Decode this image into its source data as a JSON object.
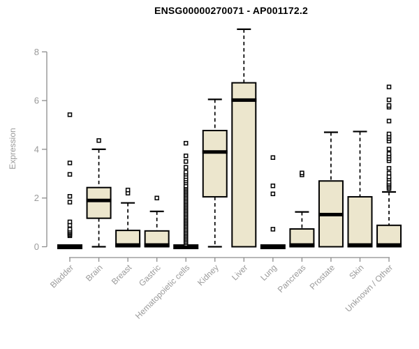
{
  "colors": {
    "box_fill": "#ece6cd",
    "box_border": "#000000",
    "median": "#000000",
    "whisker": "#000000",
    "outlier_stroke": "#000000",
    "outlier_fill": "#ffffff",
    "axis": "#8c8c8c",
    "tick_label": "#9a9a9a",
    "title": "#000000",
    "background": "#ffffff"
  },
  "chart_data": {
    "type": "boxplot",
    "title": "ENSG00000270071 - AP001172.2",
    "xlabel": "",
    "ylabel": "Expression",
    "ylim": [
      0,
      9.2
    ],
    "yticks": [
      0,
      2,
      4,
      6,
      8
    ],
    "grid": false,
    "legend": "none",
    "categories": [
      "Bladder",
      "Brain",
      "Breast",
      "Gastric",
      "Hematopoietic cells",
      "Kidney",
      "Liver",
      "Lung",
      "Pancreas",
      "Prostate",
      "Skin",
      "Unknown / Other"
    ],
    "series": [
      {
        "name": "Bladder",
        "q1": 0,
        "median": 0,
        "q3": 0,
        "whisker_low": 0,
        "whisker_high": 0,
        "outliers": [
          0.45,
          0.5,
          0.55,
          0.6,
          0.65,
          0.72,
          0.88,
          1.02,
          1.83,
          2.07,
          2.97,
          3.44,
          5.42
        ]
      },
      {
        "name": "Brain",
        "q1": 1.17,
        "median": 1.9,
        "q3": 2.43,
        "whisker_low": 0,
        "whisker_high": 4.0,
        "outliers": [
          4.36
        ]
      },
      {
        "name": "Breast",
        "q1": 0,
        "median": 0,
        "q3": 0.67,
        "whisker_low": 0,
        "whisker_high": 1.8,
        "outliers": [
          2.2,
          2.33
        ]
      },
      {
        "name": "Gastric",
        "q1": 0,
        "median": 0,
        "q3": 0.65,
        "whisker_low": 0,
        "whisker_high": 1.45,
        "outliers": [
          2.0
        ]
      },
      {
        "name": "Hematopoietic cells",
        "q1": 0,
        "median": 0,
        "q3": 0,
        "whisker_low": 0,
        "whisker_high": 0,
        "outliers": [
          0.1,
          0.16,
          0.22,
          0.28,
          0.34,
          0.4,
          0.46,
          0.52,
          0.58,
          0.64,
          0.7,
          0.76,
          0.82,
          0.88,
          0.94,
          1.0,
          1.06,
          1.12,
          1.18,
          1.24,
          1.3,
          1.36,
          1.42,
          1.48,
          1.54,
          1.6,
          1.66,
          1.72,
          1.78,
          1.84,
          1.9,
          1.96,
          2.02,
          2.08,
          2.14,
          2.2,
          2.26,
          2.32,
          2.38,
          2.44,
          2.5,
          2.62,
          2.7,
          2.78,
          2.88,
          2.98,
          3.06,
          3.26,
          3.5,
          3.73,
          4.25
        ]
      },
      {
        "name": "Kidney",
        "q1": 2.05,
        "median": 3.89,
        "q3": 4.77,
        "whisker_low": 0,
        "whisker_high": 6.05,
        "outliers": []
      },
      {
        "name": "Liver",
        "q1": 0,
        "median": 6.02,
        "q3": 6.73,
        "whisker_low": 0,
        "whisker_high": 8.93,
        "outliers": []
      },
      {
        "name": "Lung",
        "q1": 0,
        "median": 0,
        "q3": 0,
        "whisker_low": 0,
        "whisker_high": 0,
        "outliers": [
          0.72,
          2.17,
          2.5,
          3.66
        ]
      },
      {
        "name": "Pancreas",
        "q1": 0,
        "median": 0,
        "q3": 0.73,
        "whisker_low": 0,
        "whisker_high": 1.43,
        "outliers": [
          2.95,
          3.03
        ]
      },
      {
        "name": "Prostate",
        "q1": 0,
        "median": 1.32,
        "q3": 2.7,
        "whisker_low": 0,
        "whisker_high": 4.7,
        "outliers": []
      },
      {
        "name": "Skin",
        "q1": 0,
        "median": 0,
        "q3": 2.05,
        "whisker_low": 0,
        "whisker_high": 4.73,
        "outliers": []
      },
      {
        "name": "Unknown / Other",
        "q1": 0,
        "median": 0,
        "q3": 0.88,
        "whisker_low": 0,
        "whisker_high": 2.25,
        "outliers": [
          2.39,
          2.45,
          2.52,
          2.58,
          2.65,
          2.78,
          2.87,
          3.02,
          3.22,
          3.53,
          3.62,
          3.72,
          3.82,
          4.01,
          4.34,
          4.44,
          4.53,
          4.63,
          5.16,
          5.73,
          5.8,
          6.03,
          6.56
        ]
      }
    ]
  }
}
